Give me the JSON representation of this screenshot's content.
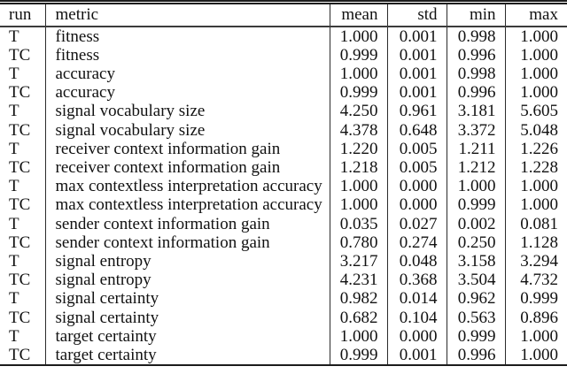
{
  "table": {
    "columns": [
      "run",
      "metric",
      "mean",
      "std",
      "min",
      "max"
    ],
    "rows": [
      [
        "T",
        "fitness",
        "1.000",
        "0.001",
        "0.998",
        "1.000"
      ],
      [
        "TC",
        "fitness",
        "0.999",
        "0.001",
        "0.996",
        "1.000"
      ],
      [
        "T",
        "accuracy",
        "1.000",
        "0.001",
        "0.998",
        "1.000"
      ],
      [
        "TC",
        "accuracy",
        "0.999",
        "0.001",
        "0.996",
        "1.000"
      ],
      [
        "T",
        "signal vocabulary size",
        "4.250",
        "0.961",
        "3.181",
        "5.605"
      ],
      [
        "TC",
        "signal vocabulary size",
        "4.378",
        "0.648",
        "3.372",
        "5.048"
      ],
      [
        "T",
        "receiver context information gain",
        "1.220",
        "0.005",
        "1.211",
        "1.226"
      ],
      [
        "TC",
        "receiver context information gain",
        "1.218",
        "0.005",
        "1.212",
        "1.228"
      ],
      [
        "T",
        "max contextless interpretation accuracy",
        "1.000",
        "0.000",
        "1.000",
        "1.000"
      ],
      [
        "TC",
        "max contextless interpretation accuracy",
        "1.000",
        "0.000",
        "0.999",
        "1.000"
      ],
      [
        "T",
        "sender context information gain",
        "0.035",
        "0.027",
        "0.002",
        "0.081"
      ],
      [
        "TC",
        "sender context information gain",
        "0.780",
        "0.274",
        "0.250",
        "1.128"
      ],
      [
        "T",
        "signal entropy",
        "3.217",
        "0.048",
        "3.158",
        "3.294"
      ],
      [
        "TC",
        "signal entropy",
        "4.231",
        "0.368",
        "3.504",
        "4.732"
      ],
      [
        "T",
        "signal certainty",
        "0.982",
        "0.014",
        "0.962",
        "0.999"
      ],
      [
        "TC",
        "signal certainty",
        "0.682",
        "0.104",
        "0.563",
        "0.896"
      ],
      [
        "T",
        "target certainty",
        "1.000",
        "0.000",
        "0.999",
        "1.000"
      ],
      [
        "TC",
        "target certainty",
        "0.999",
        "0.001",
        "0.996",
        "1.000"
      ]
    ]
  },
  "colors": {
    "background": "#ffffff",
    "text": "#111111",
    "outer_rule": "#1c1c1c",
    "header_rule": "#3b3b3b",
    "column_divider": "#2b2b2b"
  }
}
